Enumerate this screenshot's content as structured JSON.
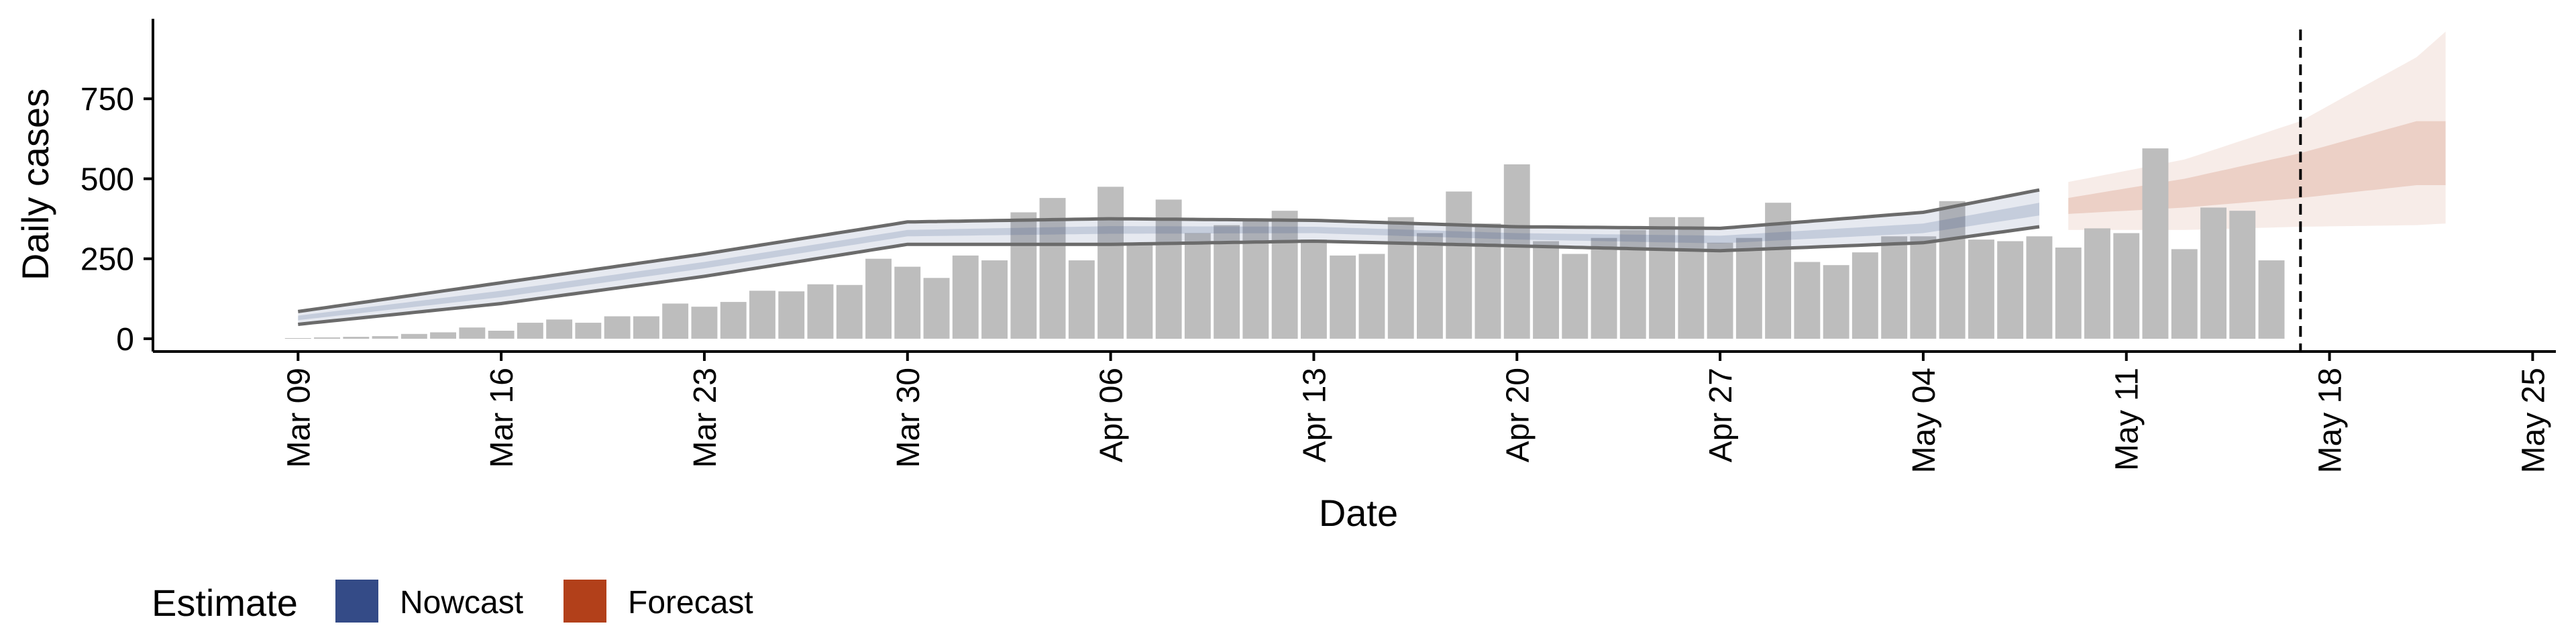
{
  "chart_data": {
    "type": "bar",
    "xlabel": "Date",
    "ylabel": "Daily cases",
    "x_ticks": [
      "Mar 09",
      "Mar 16",
      "Mar 23",
      "Mar 30",
      "Apr 06",
      "Apr 13",
      "Apr 20",
      "Apr 27",
      "May 04",
      "May 11",
      "May 18",
      "May 25"
    ],
    "y_ticks": [
      0,
      250,
      500,
      750
    ],
    "xlim": [
      "2020-03-04",
      "2020-05-25"
    ],
    "ylim": [
      -40,
      1000
    ],
    "grid": false,
    "legend": {
      "title": "Estimate",
      "position": "bottom-left",
      "entries": [
        {
          "label": "Nowcast",
          "color": "#344b87"
        },
        {
          "label": "Forecast",
          "color": "#b2401a"
        }
      ]
    },
    "annotations": [
      {
        "type": "vertical-dashed-line",
        "x": "2020-05-17"
      }
    ],
    "series": [
      {
        "kind": "bars",
        "color": "#bdbdbd",
        "start_date": "2020-03-09",
        "values": [
          2,
          4,
          6,
          8,
          15,
          20,
          35,
          25,
          50,
          60,
          50,
          70,
          70,
          110,
          100,
          115,
          150,
          148,
          170,
          168,
          250,
          225,
          190,
          260,
          245,
          395,
          440,
          245,
          475,
          300,
          435,
          330,
          355,
          375,
          400,
          310,
          260,
          265,
          380,
          330,
          460,
          360,
          545,
          305,
          265,
          315,
          340,
          380,
          380,
          300,
          315,
          425,
          240,
          230,
          270,
          320,
          320,
          430,
          310,
          305,
          320,
          285,
          345,
          330,
          595,
          280,
          410,
          400,
          245
        ]
      },
      {
        "kind": "nowcast",
        "color": "#344b87",
        "x": [
          "2020-03-09",
          "2020-03-16",
          "2020-03-23",
          "2020-03-30",
          "2020-04-06",
          "2020-04-13",
          "2020-04-20",
          "2020-04-27",
          "2020-05-04",
          "2020-05-08"
        ],
        "median": [
          65,
          140,
          230,
          330,
          340,
          340,
          320,
          310,
          345,
          405
        ],
        "lower_90": [
          45,
          110,
          195,
          295,
          295,
          305,
          290,
          275,
          300,
          350
        ],
        "upper_90": [
          85,
          175,
          265,
          365,
          375,
          370,
          350,
          345,
          395,
          465
        ],
        "lower_50": [
          58,
          130,
          220,
          320,
          328,
          330,
          310,
          298,
          330,
          385
        ],
        "upper_50": [
          72,
          150,
          240,
          340,
          352,
          350,
          330,
          322,
          360,
          425
        ]
      },
      {
        "kind": "forecast",
        "color": "#b2401a",
        "x": [
          "2020-05-09",
          "2020-05-13",
          "2020-05-17",
          "2020-05-21",
          "2020-05-22"
        ],
        "median": [
          420,
          450,
          500,
          560,
          565
        ],
        "lower_90": [
          340,
          340,
          350,
          355,
          360
        ],
        "upper_90": [
          490,
          560,
          680,
          880,
          960
        ],
        "lower_50": [
          390,
          410,
          440,
          480,
          480
        ],
        "upper_50": [
          440,
          500,
          580,
          680,
          680
        ]
      }
    ]
  }
}
